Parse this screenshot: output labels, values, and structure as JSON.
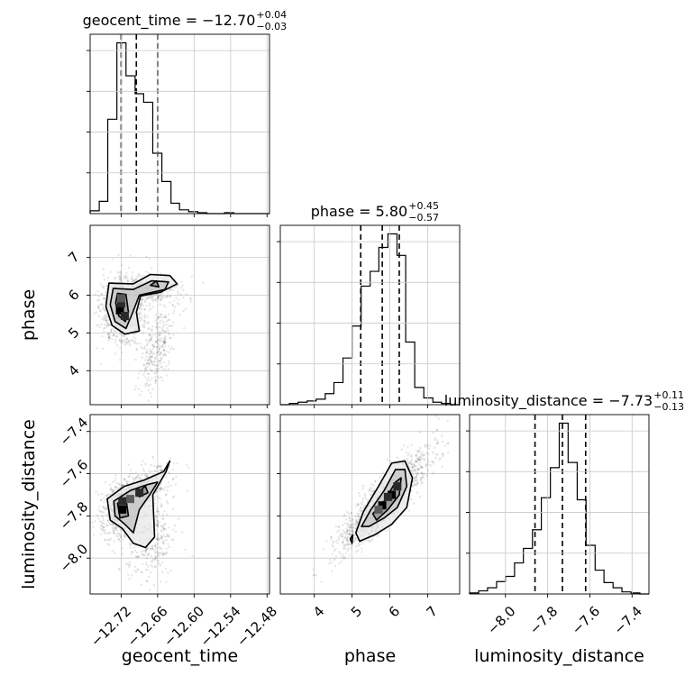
{
  "chart_data": {
    "type": "corner",
    "parameters": [
      {
        "name": "geocent_time",
        "range": [
          -12.771,
          -12.476
        ],
        "ticks": [
          -12.72,
          -12.66,
          -12.6,
          -12.54,
          -12.48
        ],
        "tick_labels": [
          "−12.72",
          "−12.66",
          "−12.60",
          "−12.54",
          "−12.48"
        ]
      },
      {
        "name": "phase",
        "range": [
          3.1,
          7.85
        ],
        "ticks": [
          4,
          5,
          6,
          7
        ],
        "tick_labels": [
          "4",
          "5",
          "6",
          "7"
        ]
      },
      {
        "name": "luminosity_distance",
        "range": [
          -8.17,
          -7.32
        ],
        "ticks": [
          -8.0,
          -7.8,
          -7.6,
          -7.4
        ],
        "tick_labels": [
          "−8.0",
          "−7.8",
          "−7.6",
          "−7.4"
        ]
      }
    ],
    "axis_labels": [
      "geocent_time",
      "phase",
      "luminosity_distance"
    ],
    "marginals": [
      {
        "parameter": "geocent_time",
        "title": {
          "name": "geocent_time",
          "median": "−12.70",
          "plus": "+0.04",
          "minus": "−0.03"
        },
        "quantiles": [
          -12.72,
          -12.695,
          -12.66
        ],
        "bin_edges": [
          -12.771,
          -12.756,
          -12.742,
          -12.727,
          -12.712,
          -12.697,
          -12.683,
          -12.668,
          -12.653,
          -12.638,
          -12.624,
          -12.609,
          -12.594,
          -12.579,
          -12.565,
          -12.55,
          -12.535,
          -12.52,
          -12.506,
          -12.491,
          -12.476
        ],
        "counts": [
          3,
          13,
          100,
          181,
          146,
          127,
          118,
          64,
          34,
          11,
          4,
          2,
          1,
          0,
          0,
          1,
          0,
          0,
          0,
          0
        ]
      },
      {
        "parameter": "phase",
        "title": {
          "name": "phase",
          "median": "5.80",
          "plus": "+0.45",
          "minus": "−0.57"
        },
        "quantiles": [
          5.23,
          5.8,
          6.25
        ],
        "bin_edges": [
          3.1,
          3.34,
          3.57,
          3.81,
          4.05,
          4.29,
          4.52,
          4.76,
          5.0,
          5.24,
          5.48,
          5.71,
          5.95,
          6.19,
          6.42,
          6.66,
          6.9,
          7.14,
          7.37,
          7.61,
          7.85
        ],
        "counts": [
          0,
          2,
          4,
          6,
          9,
          18,
          36,
          76,
          128,
          193,
          217,
          256,
          278,
          243,
          102,
          28,
          11,
          4,
          2,
          0
        ]
      },
      {
        "parameter": "luminosity_distance",
        "title": {
          "name": "luminosity_distance",
          "median": "−7.73",
          "plus": "+0.11",
          "minus": "−0.13"
        },
        "quantiles": [
          -7.86,
          -7.73,
          -7.62
        ],
        "bin_edges": [
          -8.17,
          -8.127,
          -8.085,
          -8.042,
          -8.0,
          -7.957,
          -7.915,
          -7.872,
          -7.83,
          -7.787,
          -7.745,
          -7.703,
          -7.66,
          -7.618,
          -7.575,
          -7.533,
          -7.49,
          -7.448,
          -7.405,
          -7.363,
          -7.32
        ],
        "counts": [
          1,
          3,
          6,
          12,
          17,
          30,
          44,
          62,
          93,
          122,
          165,
          127,
          91,
          47,
          23,
          11,
          6,
          2,
          1,
          0
        ]
      }
    ],
    "joint_panels": [
      {
        "x": "geocent_time",
        "y": "phase"
      },
      {
        "x": "geocent_time",
        "y": "luminosity_distance"
      },
      {
        "x": "phase",
        "y": "luminosity_distance"
      }
    ],
    "grid": true
  }
}
